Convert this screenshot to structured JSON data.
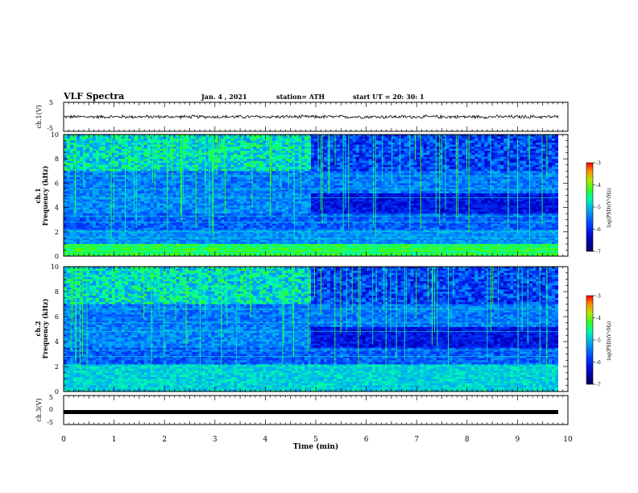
{
  "header": {
    "title": "VLF Spectra",
    "date": "Jan. 4 , 2021",
    "station": "station= ATH",
    "start": "start  UT =   20: 30: 1"
  },
  "colors": {
    "waveform": "#000000",
    "spectrogram_low": "#000080",
    "spectrogram_mid": "#00ff80",
    "spectrogram_high": "#ff0000"
  },
  "chart_data": [
    {
      "type": "line",
      "panel": "ch1-waveform",
      "ylabel": "ch.1(V)",
      "ylim": [
        -5,
        5
      ],
      "yticks": [
        "5",
        "-5"
      ],
      "xlim": [
        0,
        10
      ],
      "description_values": {
        "mean_y": 0,
        "amplitude_y": 0.5
      }
    },
    {
      "type": "heatmap",
      "panel": "ch1-spectrogram",
      "ylabel_line1": "ch.1",
      "ylabel_line2": "Frequency (kHz)",
      "ylim": [
        0,
        10
      ],
      "yticks": [
        "0",
        "2",
        "4",
        "6",
        "8",
        "10"
      ],
      "xlim": [
        0,
        10
      ],
      "colorbar": {
        "label": "log(PSD)(V²/Hz)",
        "range": [
          -7,
          -3
        ],
        "ticks": [
          "-3",
          "-4",
          "-5",
          "-6",
          "-7"
        ]
      }
    },
    {
      "type": "heatmap",
      "panel": "ch2-spectrogram",
      "ylabel_line1": "ch.2",
      "ylabel_line2": "Frequency (kHz)",
      "ylim": [
        0,
        10
      ],
      "yticks": [
        "0",
        "2",
        "4",
        "6",
        "8",
        "10"
      ],
      "xlim": [
        0,
        10
      ],
      "colorbar": {
        "label": "log(PSD)(V²/Hz)",
        "range": [
          -7,
          -3
        ],
        "ticks": [
          "-3",
          "-4",
          "-5",
          "-6",
          "-7"
        ]
      }
    },
    {
      "type": "line",
      "panel": "ch3-waveform",
      "ylabel": "ch.3(V)",
      "ylim": [
        -5,
        5
      ],
      "yticks": [
        "5",
        "0",
        "-5"
      ],
      "xlim": [
        0,
        10
      ],
      "description_values": {
        "mean_y": 0,
        "amplitude_y": 0
      }
    }
  ],
  "xaxis": {
    "label": "Time (min)",
    "ticks": [
      "0",
      "1",
      "2",
      "3",
      "4",
      "5",
      "6",
      "7",
      "8",
      "9",
      "10"
    ]
  }
}
